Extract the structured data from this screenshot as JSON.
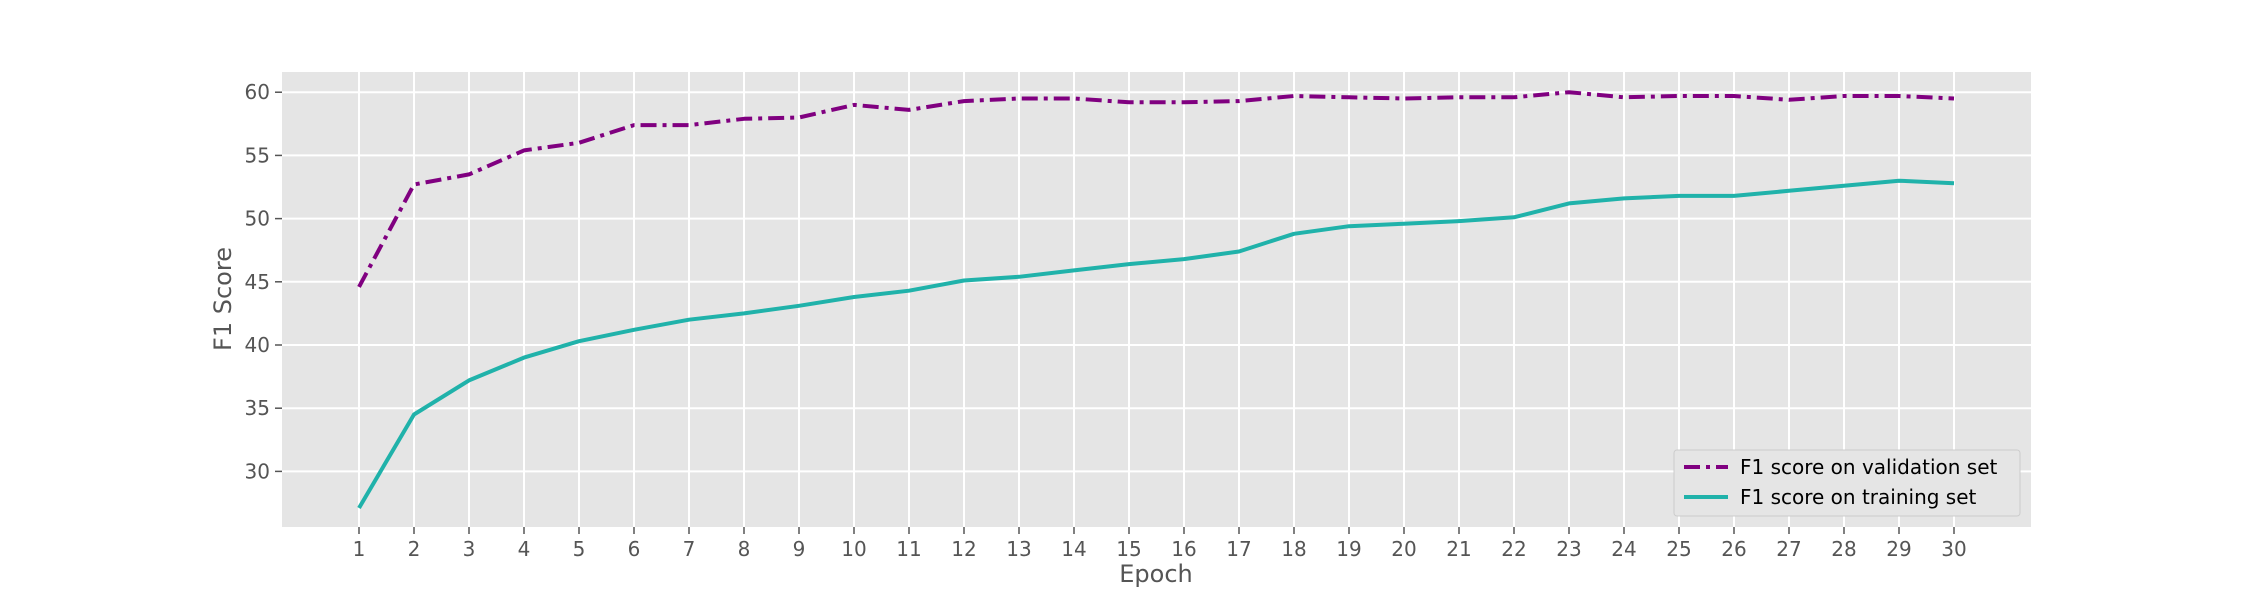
{
  "chart_data": {
    "type": "line",
    "title": "",
    "xlabel": "Epoch",
    "ylabel": "F1 Score",
    "x": [
      1,
      2,
      3,
      4,
      5,
      6,
      7,
      8,
      9,
      10,
      11,
      12,
      13,
      14,
      15,
      16,
      17,
      18,
      19,
      20,
      21,
      22,
      23,
      24,
      25,
      26,
      27,
      28,
      29,
      30
    ],
    "xlim": [
      -0.4,
      31.4
    ],
    "ylim": [
      25.6,
      61.6
    ],
    "yticks": [
      30,
      35,
      40,
      45,
      50,
      55,
      60
    ],
    "grid": true,
    "legend_position": "bottom-right",
    "background": "#e5e5e5",
    "series": [
      {
        "name": "F1 score on validation set",
        "color": "#800080",
        "style": "dashdot",
        "values": [
          44.6,
          52.7,
          53.5,
          55.4,
          56.0,
          57.4,
          57.4,
          57.9,
          58.0,
          59.0,
          58.6,
          59.3,
          59.5,
          59.5,
          59.2,
          59.2,
          59.3,
          59.7,
          59.6,
          59.5,
          59.6,
          59.6,
          60.0,
          59.6,
          59.7,
          59.7,
          59.4,
          59.7,
          59.7,
          59.5
        ]
      },
      {
        "name": "F1 score on training set",
        "color": "#20b2aa",
        "style": "solid",
        "values": [
          27.1,
          34.5,
          37.2,
          39.0,
          40.3,
          41.2,
          42.0,
          42.5,
          43.1,
          43.8,
          44.3,
          45.1,
          45.4,
          45.9,
          46.4,
          46.8,
          47.4,
          48.8,
          49.4,
          49.6,
          49.8,
          50.1,
          51.2,
          51.6,
          51.8,
          51.8,
          52.2,
          52.6,
          53.0,
          52.8
        ]
      }
    ]
  }
}
